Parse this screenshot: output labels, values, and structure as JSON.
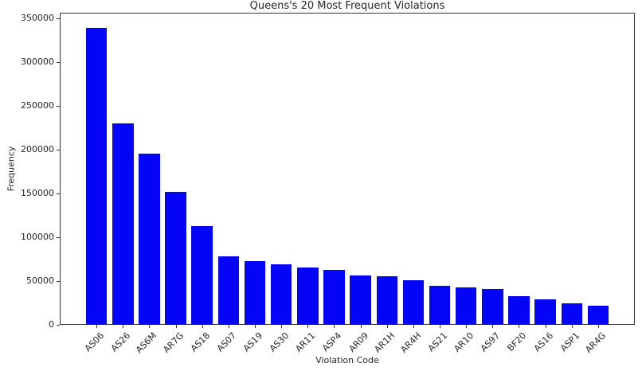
{
  "chart_data": {
    "type": "bar",
    "title": "Queens's 20 Most Frequent Violations",
    "xlabel": "Violation Code",
    "ylabel": "Frequency",
    "categories": [
      "AS06",
      "AS26",
      "AS6M",
      "AR7G",
      "AS18",
      "AS07",
      "AS19",
      "AS30",
      "AR11",
      "ASP4",
      "AR09",
      "AR1H",
      "AR4H",
      "AS21",
      "AR10",
      "AS97",
      "BF20",
      "AS16",
      "ASP1",
      "AR4G"
    ],
    "values": [
      339000,
      230000,
      195000,
      152000,
      113000,
      78500,
      73000,
      69500,
      65500,
      62500,
      56000,
      55500,
      51000,
      44500,
      43000,
      40500,
      32500,
      29500,
      24500,
      22000
    ],
    "yticks": [
      0,
      50000,
      100000,
      150000,
      200000,
      250000,
      300000,
      350000
    ],
    "ylim": [
      0,
      356000
    ],
    "grid": false,
    "legend": "none",
    "bar_color": "#0404f6",
    "axis_color": "#363636",
    "text_color": "#262626",
    "background_color": "#ffffff"
  }
}
